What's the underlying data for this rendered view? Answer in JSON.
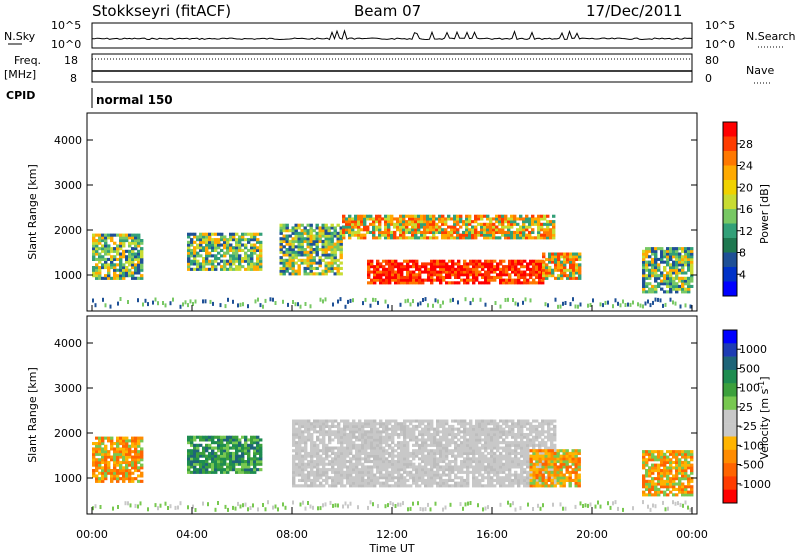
{
  "header": {
    "station": "Stokkseyri (fitACF)",
    "beam": "Beam 07",
    "date": "17/Dec/2011"
  },
  "strip_labels": {
    "nsky": "N.Sky",
    "nsearch": "N.Search",
    "freq": "Freq.",
    "freq_unit": "[MHz]",
    "nave": "Nave",
    "cpid": "CPID",
    "cpid_value": "normal 150",
    "nsky_ticks": [
      "10^5",
      "10^0"
    ],
    "freq_ticks": [
      "18",
      "8"
    ],
    "nave_ticks": [
      "80",
      "0"
    ]
  },
  "colorbars": {
    "power": {
      "label": "Power [dB]",
      "ticks": [
        "28",
        "24",
        "20",
        "16",
        "12",
        "8",
        "4"
      ],
      "colors": [
        "#ff0000",
        "#ff3c00",
        "#ff7800",
        "#ffaa00",
        "#f0d200",
        "#c8dc32",
        "#78c864",
        "#32a078",
        "#1e7850",
        "#1e5096",
        "#0032c8",
        "#0000ff"
      ]
    },
    "velocity": {
      "label": "Velocity [m s",
      "label_sup": "-1",
      "label_end": "]",
      "ticks": [
        "1000",
        "500",
        "100",
        "25",
        "-25",
        "-100",
        "-500",
        "-1000"
      ],
      "colors": [
        "#0000ff",
        "#1e3cb4",
        "#1e6478",
        "#1e8c50",
        "#3ca03c",
        "#78c850",
        "#c8c8c8",
        "#c8c8c8",
        "#ffb400",
        "#ff8c00",
        "#ff6400",
        "#ff3c00",
        "#ff0000"
      ]
    }
  },
  "chart_data": [
    {
      "type": "heatmap",
      "name": "Power",
      "xlabel": "",
      "ylabel": "Slant Range [km]",
      "xlim": [
        0,
        24
      ],
      "ylim": [
        200,
        4600
      ],
      "y_ticks": [
        "1000",
        "2000",
        "3000",
        "4000"
      ],
      "regions": [
        {
          "t0": 0.0,
          "t1": 2.0,
          "r0": 900,
          "r1": 1900,
          "level": "mid"
        },
        {
          "t0": 3.8,
          "t1": 6.8,
          "r0": 1100,
          "r1": 1900,
          "level": "mid"
        },
        {
          "t0": 7.5,
          "t1": 10.0,
          "r0": 1000,
          "r1": 2100,
          "level": "mid"
        },
        {
          "t0": 10.0,
          "t1": 18.5,
          "r0": 1800,
          "r1": 2300,
          "level": "high"
        },
        {
          "t0": 11.0,
          "t1": 18.0,
          "r0": 800,
          "r1": 1300,
          "level": "very_high"
        },
        {
          "t0": 18.0,
          "t1": 19.5,
          "r0": 900,
          "r1": 1500,
          "level": "high"
        },
        {
          "t0": 22.0,
          "t1": 24.0,
          "r0": 600,
          "r1": 1600,
          "level": "mid"
        }
      ]
    },
    {
      "type": "heatmap",
      "name": "Velocity",
      "xlabel": "Time UT",
      "ylabel": "Slant Range [km]",
      "xlim": [
        0,
        24
      ],
      "ylim": [
        200,
        4600
      ],
      "x_ticks": [
        "00:00",
        "04:00",
        "08:00",
        "12:00",
        "16:00",
        "20:00",
        "00:00"
      ],
      "y_ticks": [
        "1000",
        "2000",
        "3000",
        "4000"
      ],
      "regions": [
        {
          "t0": 0.0,
          "t1": 2.0,
          "r0": 900,
          "r1": 1900,
          "level": "neg"
        },
        {
          "t0": 3.8,
          "t1": 6.8,
          "r0": 1100,
          "r1": 1900,
          "level": "pos"
        },
        {
          "t0": 8.0,
          "t1": 18.5,
          "r0": 800,
          "r1": 2300,
          "level": "zero"
        },
        {
          "t0": 17.5,
          "t1": 19.5,
          "r0": 800,
          "r1": 1600,
          "level": "neg"
        },
        {
          "t0": 22.0,
          "t1": 24.0,
          "r0": 600,
          "r1": 1600,
          "level": "neg"
        }
      ]
    }
  ]
}
